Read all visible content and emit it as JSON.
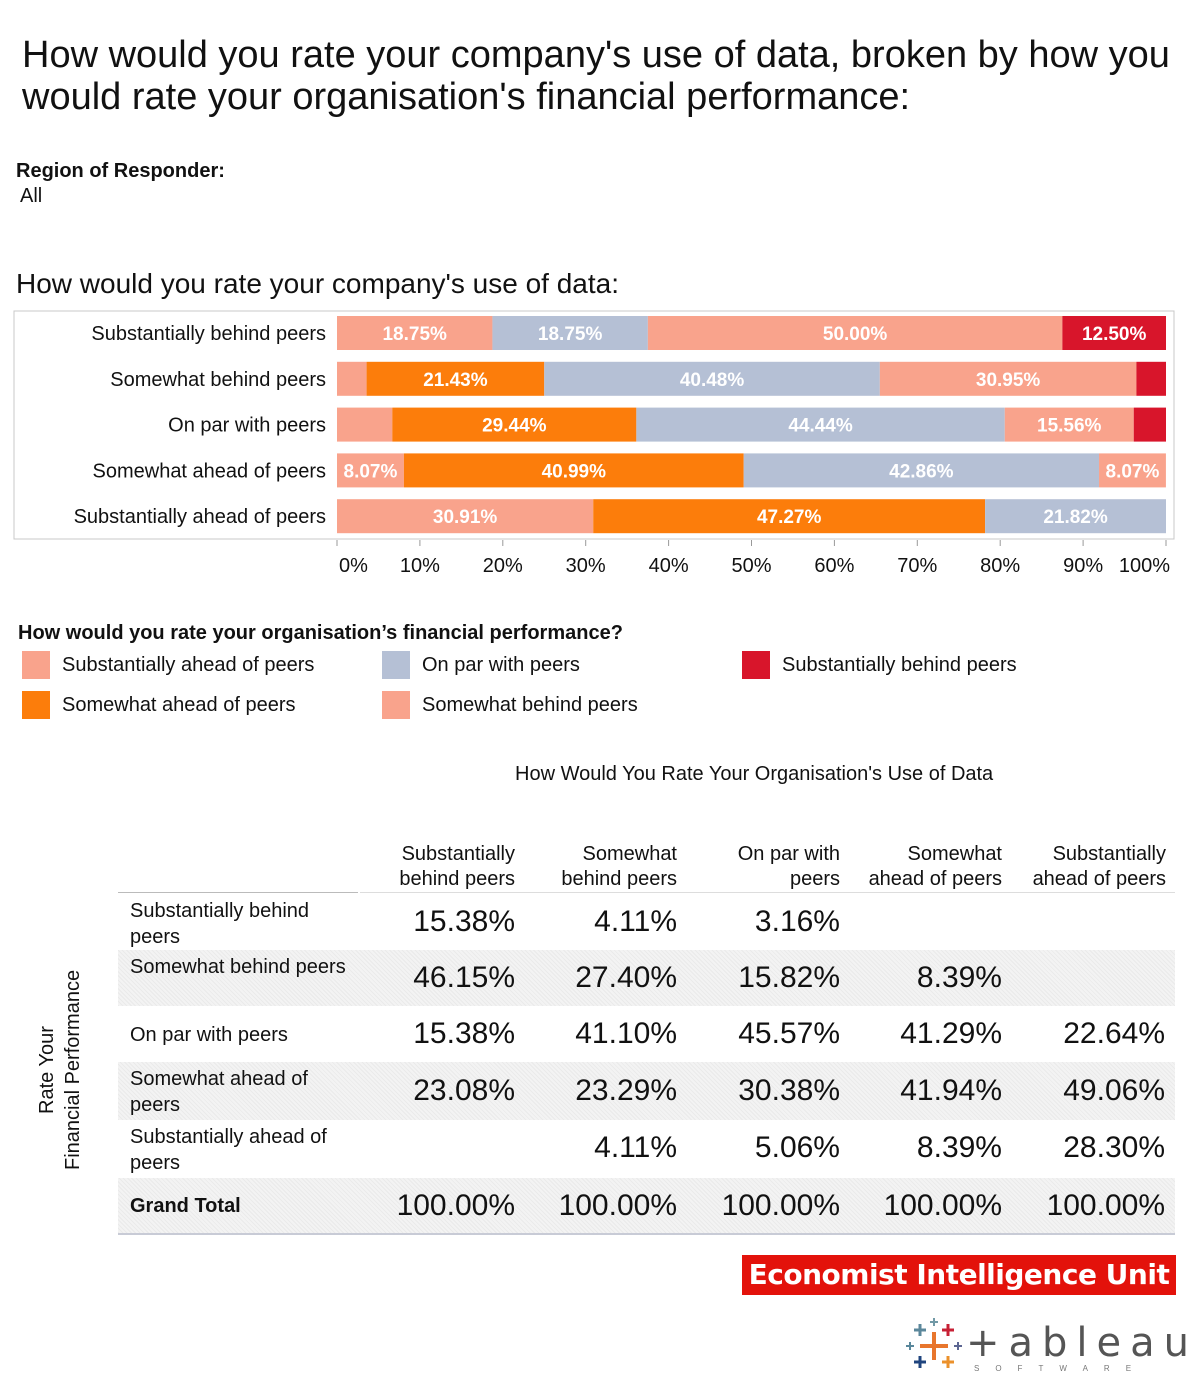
{
  "title": "How would you rate your company's use of data, broken by how you would rate your organisation's financial performance:",
  "filter": {
    "label": "Region of Responder:",
    "value": "All"
  },
  "chart_data": {
    "type": "bar",
    "orientation": "horizontal",
    "stacked": true,
    "title": "How would you rate your company's use of data:",
    "categories": [
      "Substantially behind peers",
      "Somewhat behind peers",
      "On par with peers",
      "Somewhat ahead of peers",
      "Substantially ahead of peers"
    ],
    "series": [
      {
        "name": "Substantially ahead of peers",
        "color": "#f9a38c",
        "values": [
          18.75,
          3.57,
          6.67,
          8.07,
          30.91
        ],
        "labels": [
          "18.75%",
          "",
          "",
          "8.07%",
          "30.91%"
        ]
      },
      {
        "name": "Somewhat ahead of peers",
        "color": "#fc7d0b",
        "values": [
          0,
          21.43,
          29.44,
          40.99,
          47.27
        ],
        "labels": [
          "",
          "21.43%",
          "29.44%",
          "40.99%",
          "47.27%"
        ]
      },
      {
        "name": "On par with peers",
        "color": "#b5c0d5",
        "values": [
          18.75,
          40.48,
          44.44,
          42.86,
          21.82
        ],
        "labels": [
          "18.75%",
          "40.48%",
          "44.44%",
          "42.86%",
          "21.82%"
        ]
      },
      {
        "name": "Somewhat behind peers",
        "color": "#f9a38c",
        "values": [
          50.0,
          30.95,
          15.56,
          8.07,
          0
        ],
        "labels": [
          "50.00%",
          "30.95%",
          "15.56%",
          "8.07%",
          ""
        ]
      },
      {
        "name": "Substantially behind peers",
        "color": "#d8152b",
        "values": [
          12.5,
          3.57,
          3.89,
          0,
          0
        ],
        "labels": [
          "12.50%",
          "",
          "",
          "",
          ""
        ]
      }
    ],
    "xlim": [
      0,
      100
    ],
    "ticks": [
      "0%",
      "10%",
      "20%",
      "30%",
      "40%",
      "50%",
      "60%",
      "70%",
      "80%",
      "90%",
      "100%"
    ],
    "legend_placement": "bottom",
    "grid": false
  },
  "legend": {
    "title": "How would you rate your organisation’s financial performance?",
    "items": [
      {
        "label": "Substantially ahead of peers",
        "color": "#f9a38c"
      },
      {
        "label": "On par with peers",
        "color": "#b5c0d5"
      },
      {
        "label": "Substantially behind peers",
        "color": "#d8152b"
      },
      {
        "label": "Somewhat ahead of peers",
        "color": "#fc7d0b"
      },
      {
        "label": "Somewhat behind peers",
        "color": "#f9a38c"
      }
    ]
  },
  "table": {
    "title": "How Would You Rate Your Organisation's Use of Data",
    "row_axis_label_1": "Rate Your",
    "row_axis_label_2": "Financial Performance",
    "columns": [
      {
        "line1": "Substantially",
        "line2": "behind peers"
      },
      {
        "line1": "Somewhat",
        "line2": "behind peers"
      },
      {
        "line1": "On par with",
        "line2": "peers"
      },
      {
        "line1": "Somewhat",
        "line2": "ahead of peers"
      },
      {
        "line1": "Substantially",
        "line2": "ahead of peers"
      }
    ],
    "rows": [
      {
        "label": "Substantially behind peers",
        "cells": [
          "15.38%",
          "4.11%",
          "3.16%",
          "",
          ""
        ]
      },
      {
        "label": "Somewhat behind peers",
        "cells": [
          "46.15%",
          "27.40%",
          "15.82%",
          "8.39%",
          ""
        ]
      },
      {
        "label": "On par with peers",
        "cells": [
          "15.38%",
          "41.10%",
          "45.57%",
          "41.29%",
          "22.64%"
        ]
      },
      {
        "label": "Somewhat ahead of peers",
        "cells": [
          "23.08%",
          "23.29%",
          "30.38%",
          "41.94%",
          "49.06%"
        ]
      },
      {
        "label": "Substantially ahead of peers",
        "cells": [
          "",
          "4.11%",
          "5.06%",
          "8.39%",
          "28.30%"
        ]
      }
    ],
    "total": {
      "label": "Grand Total",
      "cells": [
        "100.00%",
        "100.00%",
        "100.00%",
        "100.00%",
        "100.00%"
      ]
    }
  },
  "logos": {
    "eiu": "Economist Intelligence Unit",
    "tableau": "+ableau",
    "tableau_sub": "SOFTWARE"
  }
}
